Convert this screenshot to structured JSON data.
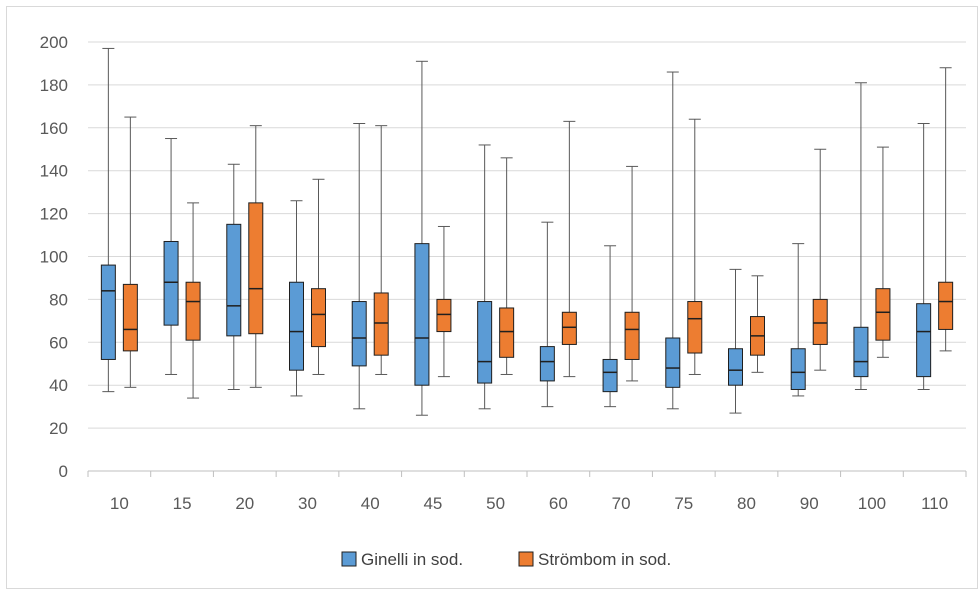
{
  "chart_data": {
    "type": "box",
    "title": "",
    "xlabel": "",
    "ylabel": "",
    "ylim": [
      0,
      200
    ],
    "y_ticks": [
      "0",
      "20",
      "40",
      "60",
      "80",
      "100",
      "120",
      "140",
      "160",
      "180",
      "200"
    ],
    "grid": true,
    "legend_position": "bottom",
    "categories": [
      "10",
      "15",
      "20",
      "30",
      "40",
      "45",
      "50",
      "60",
      "70",
      "75",
      "80",
      "90",
      "100",
      "110"
    ],
    "series": [
      {
        "name": "Ginelli in sod.",
        "color": "#5b9bd5",
        "boxes": [
          {
            "min": 37,
            "q1": 52,
            "median": 84,
            "q3": 96,
            "max": 197
          },
          {
            "min": 45,
            "q1": 68,
            "median": 88,
            "q3": 107,
            "max": 155
          },
          {
            "min": 38,
            "q1": 63,
            "median": 77,
            "q3": 115,
            "max": 143
          },
          {
            "min": 35,
            "q1": 47,
            "median": 65,
            "q3": 88,
            "max": 126
          },
          {
            "min": 29,
            "q1": 49,
            "median": 62,
            "q3": 79,
            "max": 162
          },
          {
            "min": 26,
            "q1": 40,
            "median": 62,
            "q3": 106,
            "max": 191
          },
          {
            "min": 29,
            "q1": 41,
            "median": 51,
            "q3": 79,
            "max": 152
          },
          {
            "min": 30,
            "q1": 42,
            "median": 51,
            "q3": 58,
            "max": 116
          },
          {
            "min": 30,
            "q1": 37,
            "median": 46,
            "q3": 52,
            "max": 105
          },
          {
            "min": 29,
            "q1": 39,
            "median": 48,
            "q3": 62,
            "max": 186
          },
          {
            "min": 27,
            "q1": 40,
            "median": 47,
            "q3": 57,
            "max": 94
          },
          {
            "min": 35,
            "q1": 38,
            "median": 46,
            "q3": 57,
            "max": 106
          },
          {
            "min": 38,
            "q1": 44,
            "median": 51,
            "q3": 67,
            "max": 181
          },
          {
            "min": 38,
            "q1": 44,
            "median": 65,
            "q3": 78,
            "max": 162
          }
        ]
      },
      {
        "name": "Strömbom in sod.",
        "color": "#ed7d31",
        "boxes": [
          {
            "min": 39,
            "q1": 56,
            "median": 66,
            "q3": 87,
            "max": 165
          },
          {
            "min": 34,
            "q1": 61,
            "median": 79,
            "q3": 88,
            "max": 125
          },
          {
            "min": 39,
            "q1": 64,
            "median": 85,
            "q3": 125,
            "max": 161
          },
          {
            "min": 45,
            "q1": 58,
            "median": 73,
            "q3": 85,
            "max": 136
          },
          {
            "min": 45,
            "q1": 54,
            "median": 69,
            "q3": 83,
            "max": 161
          },
          {
            "min": 44,
            "q1": 65,
            "median": 73,
            "q3": 80,
            "max": 114
          },
          {
            "min": 45,
            "q1": 53,
            "median": 65,
            "q3": 76,
            "max": 146
          },
          {
            "min": 44,
            "q1": 59,
            "median": 67,
            "q3": 74,
            "max": 163
          },
          {
            "min": 42,
            "q1": 52,
            "median": 66,
            "q3": 74,
            "max": 142
          },
          {
            "min": 45,
            "q1": 55,
            "median": 71,
            "q3": 79,
            "max": 164
          },
          {
            "min": 46,
            "q1": 54,
            "median": 63,
            "q3": 72,
            "max": 91
          },
          {
            "min": 47,
            "q1": 59,
            "median": 69,
            "q3": 80,
            "max": 150
          },
          {
            "min": 53,
            "q1": 61,
            "median": 74,
            "q3": 85,
            "max": 151
          },
          {
            "min": 56,
            "q1": 66,
            "median": 79,
            "q3": 88,
            "max": 188
          }
        ]
      }
    ]
  }
}
